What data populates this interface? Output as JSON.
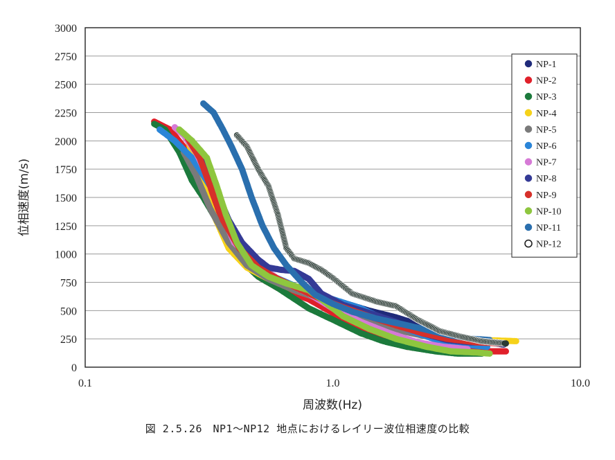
{
  "chart_data": {
    "type": "scatter",
    "xlabel": "周波数(Hz)",
    "ylabel": "位相速度(m/s)",
    "x_scale": "log",
    "xlim": [
      0.1,
      10.0
    ],
    "ylim": [
      0,
      3000
    ],
    "x_ticks": [
      "0.1",
      "1.0",
      "10.0"
    ],
    "y_ticks": [
      "0",
      "250",
      "500",
      "750",
      "1000",
      "1250",
      "1500",
      "1750",
      "2000",
      "2250",
      "2500",
      "2750",
      "3000"
    ],
    "grid": "horizontal",
    "legend": "right",
    "series": [
      {
        "name": "NP-1",
        "color": "#1f2a7a",
        "points": [
          [
            0.27,
            2000
          ],
          [
            0.3,
            1800
          ],
          [
            0.35,
            1450
          ],
          [
            0.42,
            1100
          ],
          [
            0.5,
            900
          ],
          [
            0.6,
            780
          ],
          [
            0.75,
            680
          ],
          [
            0.9,
            620
          ],
          [
            1.1,
            570
          ],
          [
            1.4,
            500
          ],
          [
            1.8,
            440
          ],
          [
            2.2,
            380
          ],
          [
            2.6,
            300
          ],
          [
            3.0,
            260
          ],
          [
            3.5,
            240
          ],
          [
            4.3,
            220
          ],
          [
            4.9,
            200
          ]
        ]
      },
      {
        "name": "NP-2",
        "color": "#e0202a",
        "points": [
          [
            0.19,
            2170
          ],
          [
            0.22,
            2100
          ],
          [
            0.26,
            1900
          ],
          [
            0.3,
            1600
          ],
          [
            0.35,
            1250
          ],
          [
            0.4,
            1000
          ],
          [
            0.5,
            800
          ],
          [
            0.6,
            700
          ],
          [
            0.8,
            600
          ],
          [
            1.0,
            480
          ],
          [
            1.3,
            330
          ],
          [
            1.6,
            240
          ],
          [
            2.0,
            180
          ],
          [
            2.5,
            150
          ],
          [
            3.0,
            140
          ],
          [
            4.0,
            140
          ],
          [
            5.0,
            140
          ]
        ]
      },
      {
        "name": "NP-3",
        "color": "#1c7a3c",
        "points": [
          [
            0.19,
            2150
          ],
          [
            0.21,
            2100
          ],
          [
            0.24,
            1900
          ],
          [
            0.27,
            1650
          ],
          [
            0.3,
            1500
          ],
          [
            0.35,
            1250
          ],
          [
            0.4,
            1000
          ],
          [
            0.5,
            800
          ],
          [
            0.6,
            700
          ],
          [
            0.8,
            520
          ],
          [
            1.0,
            420
          ],
          [
            1.3,
            300
          ],
          [
            1.6,
            230
          ],
          [
            2.0,
            180
          ],
          [
            2.6,
            140
          ],
          [
            3.2,
            120
          ],
          [
            4.0,
            120
          ]
        ]
      },
      {
        "name": "NP-4",
        "color": "#f6d21a",
        "points": [
          [
            0.26,
            2000
          ],
          [
            0.28,
            1800
          ],
          [
            0.3,
            1600
          ],
          [
            0.33,
            1350
          ],
          [
            0.38,
            1050
          ],
          [
            0.45,
            880
          ],
          [
            0.55,
            780
          ],
          [
            0.7,
            680
          ],
          [
            0.9,
            600
          ],
          [
            1.1,
            520
          ],
          [
            1.4,
            420
          ],
          [
            1.8,
            340
          ],
          [
            2.4,
            270
          ],
          [
            3.0,
            240
          ],
          [
            4.0,
            240
          ],
          [
            5.5,
            230
          ]
        ]
      },
      {
        "name": "NP-5",
        "color": "#7a7a7a",
        "points": [
          [
            0.25,
            1900
          ],
          [
            0.28,
            1700
          ],
          [
            0.32,
            1400
          ],
          [
            0.38,
            1100
          ],
          [
            0.45,
            900
          ],
          [
            0.55,
            780
          ],
          [
            0.7,
            680
          ],
          [
            0.9,
            600
          ],
          [
            1.1,
            520
          ],
          [
            1.4,
            400
          ],
          [
            1.8,
            330
          ],
          [
            2.3,
            280
          ],
          [
            3.0,
            250
          ],
          [
            4.0,
            230
          ]
        ]
      },
      {
        "name": "NP-6",
        "color": "#2a85d8",
        "points": [
          [
            0.2,
            2100
          ],
          [
            0.23,
            2000
          ],
          [
            0.27,
            1850
          ],
          [
            0.32,
            1600
          ],
          [
            0.37,
            1300
          ],
          [
            0.45,
            1000
          ],
          [
            0.55,
            820
          ],
          [
            0.7,
            720
          ],
          [
            0.85,
            640
          ],
          [
            1.0,
            600
          ],
          [
            1.3,
            520
          ],
          [
            1.7,
            400
          ],
          [
            2.2,
            300
          ],
          [
            2.8,
            220
          ],
          [
            3.4,
            200
          ],
          [
            4.2,
            180
          ]
        ]
      },
      {
        "name": "NP-7",
        "color": "#d67ad6",
        "points": [
          [
            0.23,
            2120
          ],
          [
            0.25,
            2050
          ],
          [
            0.28,
            1900
          ],
          [
            0.31,
            1700
          ],
          [
            0.35,
            1400
          ],
          [
            0.4,
            1100
          ],
          [
            0.5,
            900
          ],
          [
            0.6,
            780
          ],
          [
            0.8,
            650
          ],
          [
            1.0,
            520
          ],
          [
            1.3,
            400
          ],
          [
            1.7,
            300
          ],
          [
            2.2,
            220
          ],
          [
            2.8,
            180
          ],
          [
            3.5,
            160
          ]
        ]
      },
      {
        "name": "NP-8",
        "color": "#343a96",
        "points": [
          [
            0.27,
            2000
          ],
          [
            0.3,
            1800
          ],
          [
            0.34,
            1550
          ],
          [
            0.38,
            1300
          ],
          [
            0.43,
            1100
          ],
          [
            0.5,
            950
          ],
          [
            0.55,
            880
          ],
          [
            0.62,
            860
          ],
          [
            0.7,
            850
          ],
          [
            0.8,
            780
          ],
          [
            0.9,
            650
          ],
          [
            1.1,
            550
          ],
          [
            1.4,
            480
          ],
          [
            1.8,
            400
          ],
          [
            2.3,
            300
          ],
          [
            2.9,
            240
          ],
          [
            3.6,
            220
          ],
          [
            4.6,
            220
          ]
        ]
      },
      {
        "name": "NP-9",
        "color": "#d6302a",
        "points": [
          [
            0.26,
            2020
          ],
          [
            0.29,
            1850
          ],
          [
            0.32,
            1600
          ],
          [
            0.36,
            1300
          ],
          [
            0.42,
            1050
          ],
          [
            0.5,
            880
          ],
          [
            0.6,
            780
          ],
          [
            0.75,
            680
          ],
          [
            0.9,
            600
          ],
          [
            1.1,
            530
          ],
          [
            1.4,
            450
          ],
          [
            1.8,
            370
          ],
          [
            2.3,
            300
          ],
          [
            2.9,
            250
          ],
          [
            3.8,
            220
          ],
          [
            4.8,
            210
          ]
        ]
      },
      {
        "name": "NP-10",
        "color": "#8ec63f",
        "points": [
          [
            0.24,
            2100
          ],
          [
            0.27,
            2000
          ],
          [
            0.31,
            1850
          ],
          [
            0.34,
            1600
          ],
          [
            0.37,
            1350
          ],
          [
            0.41,
            1100
          ],
          [
            0.47,
            900
          ],
          [
            0.55,
            800
          ],
          [
            0.65,
            740
          ],
          [
            0.8,
            680
          ],
          [
            0.9,
            600
          ],
          [
            1.1,
            450
          ],
          [
            1.4,
            340
          ],
          [
            1.8,
            250
          ],
          [
            2.4,
            180
          ],
          [
            3.0,
            140
          ],
          [
            3.8,
            130
          ],
          [
            4.3,
            120
          ]
        ]
      },
      {
        "name": "NP-11",
        "color": "#2a6fae",
        "points": [
          [
            0.3,
            2330
          ],
          [
            0.33,
            2250
          ],
          [
            0.36,
            2100
          ],
          [
            0.39,
            1950
          ],
          [
            0.43,
            1750
          ],
          [
            0.47,
            1500
          ],
          [
            0.52,
            1250
          ],
          [
            0.58,
            1050
          ],
          [
            0.65,
            900
          ],
          [
            0.75,
            750
          ],
          [
            0.85,
            640
          ],
          [
            1.0,
            560
          ],
          [
            1.2,
            490
          ],
          [
            1.5,
            430
          ],
          [
            1.9,
            380
          ],
          [
            2.4,
            330
          ],
          [
            3.0,
            280
          ],
          [
            3.7,
            250
          ],
          [
            4.3,
            240
          ]
        ]
      },
      {
        "name": "NP-12",
        "color": "#2a3a34",
        "points": [
          [
            0.41,
            2050
          ],
          [
            0.45,
            1950
          ],
          [
            0.5,
            1750
          ],
          [
            0.55,
            1600
          ],
          [
            0.6,
            1350
          ],
          [
            0.65,
            1050
          ],
          [
            0.7,
            960
          ],
          [
            0.8,
            920
          ],
          [
            0.9,
            860
          ],
          [
            1.0,
            790
          ],
          [
            1.2,
            650
          ],
          [
            1.5,
            580
          ],
          [
            1.8,
            540
          ],
          [
            2.2,
            420
          ],
          [
            2.7,
            320
          ],
          [
            3.3,
            270
          ],
          [
            4.0,
            230
          ],
          [
            5.0,
            210
          ]
        ]
      }
    ]
  },
  "caption": "図 2.5.26　NP1～NP12 地点におけるレイリー波位相速度の比較"
}
